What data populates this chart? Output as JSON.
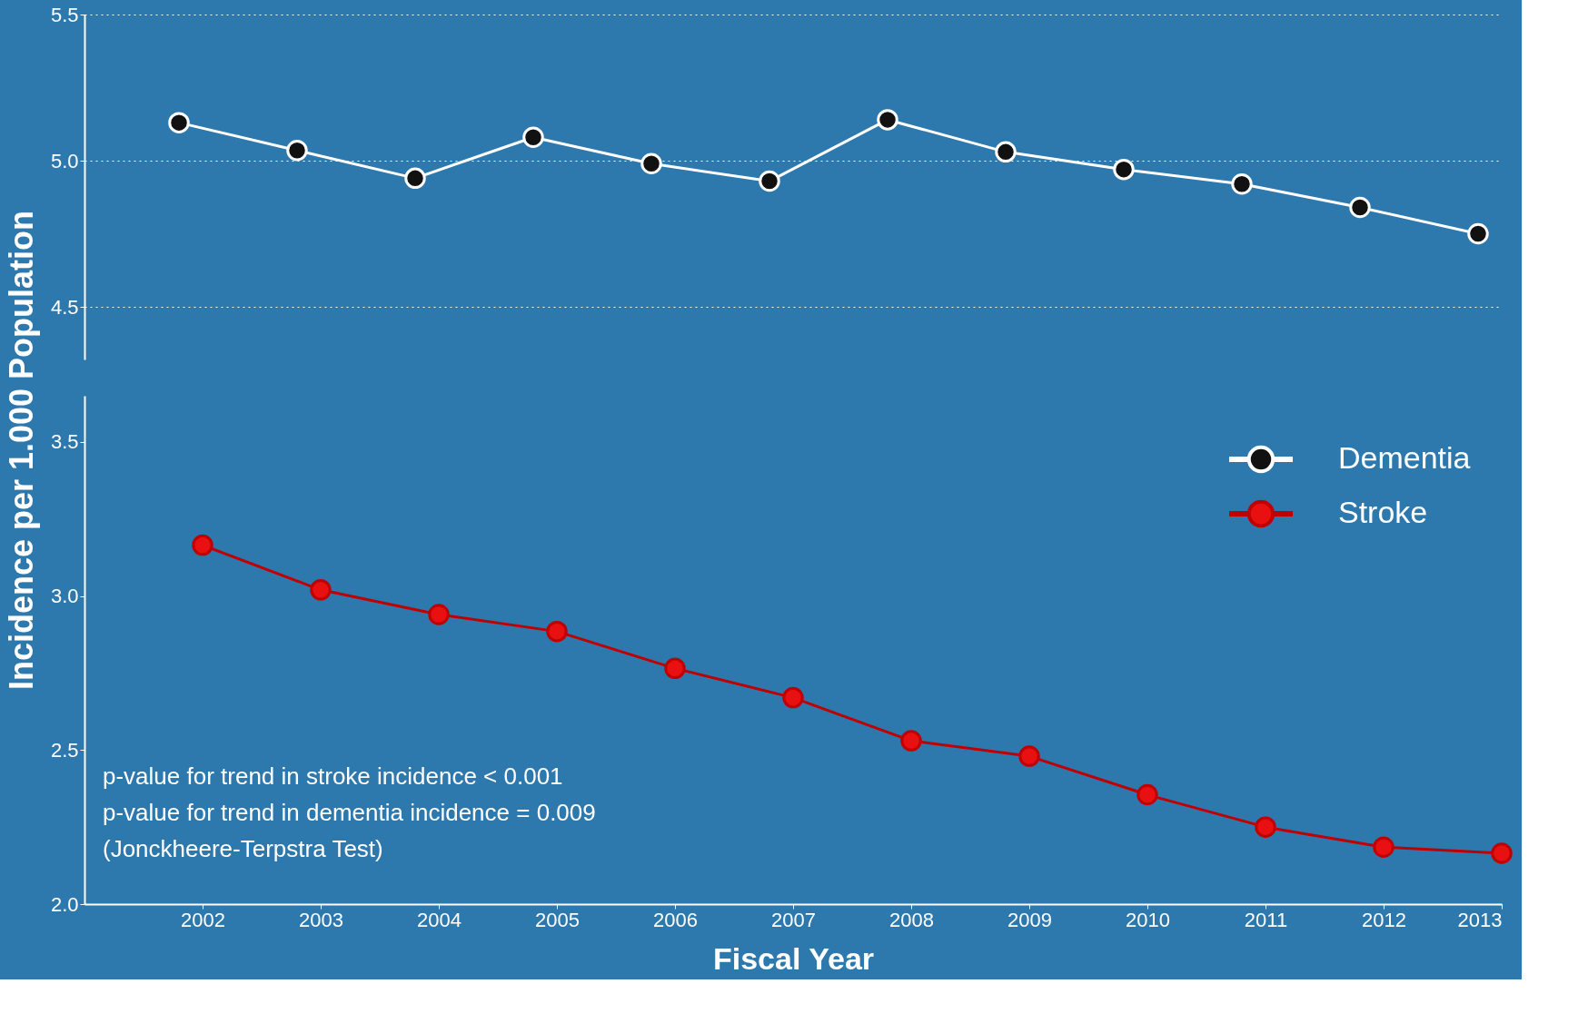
{
  "chart_data": [
    {
      "type": "line",
      "ylabel": "Incidence per 1.000 Population",
      "xlim": [
        2001,
        2013
      ],
      "ylim": [
        4.32,
        5.5
      ],
      "yticks": [
        {
          "value": 4.5,
          "label": "4.5"
        },
        {
          "value": 5,
          "label": "5.0"
        },
        {
          "value": 5.5,
          "label": "5.5"
        }
      ],
      "tick_labels": "y",
      "grid": "y",
      "marker": "circle",
      "line_style": "solid",
      "series": [
        {
          "name": "Dementia",
          "color": "#ffffff",
          "x": [
            2001.8,
            2002.8,
            2003.8,
            2004.8,
            2005.8,
            2006.8,
            2007.8,
            2008.8,
            2009.8,
            2010.8,
            2011.8,
            2012.8
          ],
          "values": [
            5.13,
            5.035,
            4.94,
            5.08,
            4.99,
            4.93,
            5.14,
            5.03,
            4.97,
            4.92,
            4.84,
            4.75
          ]
        }
      ]
    },
    {
      "type": "line",
      "xlabel": "Fiscal Year",
      "xlim": [
        2001,
        2013
      ],
      "xticks": [
        2002,
        2003,
        2004,
        2005,
        2006,
        2007,
        2008,
        2009,
        2010,
        2011,
        2012,
        2013
      ],
      "ylim": [
        2.0,
        3.65
      ],
      "yticks": [
        {
          "value": 2,
          "label": "2.0"
        },
        {
          "value": 2.5,
          "label": "2.5"
        },
        {
          "value": 3,
          "label": "3.0"
        },
        {
          "value": 3.5,
          "label": "3.5"
        }
      ],
      "grid": false,
      "marker": "circle",
      "line_style": "solid",
      "legend": "right",
      "annotations": [
        "p-value for trend in stroke incidence < 0.001",
        "p-value for trend in dementia incidence = 0.009",
        "(Jonckheere-Terpstra Test)"
      ],
      "series": [
        {
          "name": "Stroke",
          "color": "#c00000",
          "x": [
            2002,
            2003,
            2004,
            2005,
            2006,
            2007,
            2008,
            2009,
            2010,
            2011,
            2012,
            2013
          ],
          "values": [
            3.165,
            3.02,
            2.94,
            2.885,
            2.765,
            2.67,
            2.53,
            2.48,
            2.355,
            2.25,
            2.185,
            2.165
          ]
        }
      ]
    }
  ]
}
